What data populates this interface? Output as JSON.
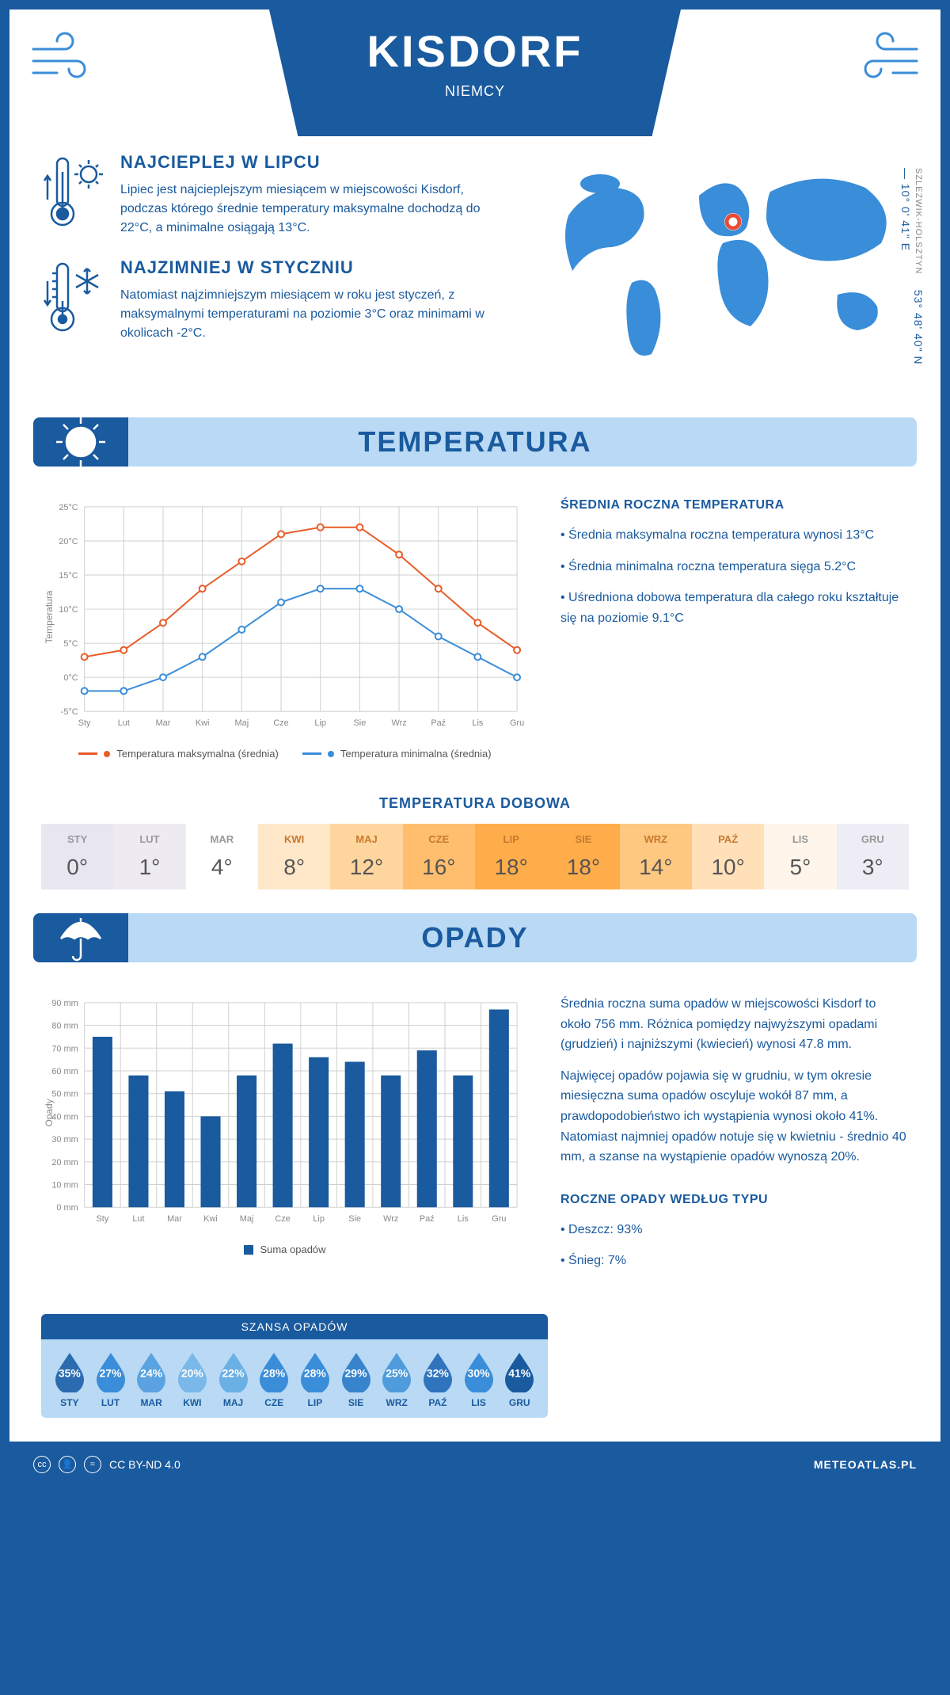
{
  "header": {
    "title": "KISDORF",
    "subtitle": "NIEMCY"
  },
  "summary": {
    "hot": {
      "title": "NAJCIEPLEJ W LIPCU",
      "text": "Lipiec jest najcieplejszym miesiącem w miejscowości Kisdorf, podczas którego średnie temperatury maksymalne dochodzą do 22°C, a minimalne osiągają 13°C."
    },
    "cold": {
      "title": "NAJZIMNIEJ W STYCZNIU",
      "text": "Natomiast najzimniejszym miesiącem w roku jest styczeń, z maksymalnymi temperaturami na poziomie 3°C oraz minimami w okolicach -2°C."
    },
    "coords": "53° 48' 40\" N — 10° 0' 41\" E",
    "region": "SZLEZWIK-HOLSZTYN",
    "marker_color": "#e94b35"
  },
  "temp_section": {
    "header": "TEMPERATURA",
    "chart": {
      "type": "line",
      "categories": [
        "Sty",
        "Lut",
        "Mar",
        "Kwi",
        "Maj",
        "Cze",
        "Lip",
        "Sie",
        "Wrz",
        "Paź",
        "Lis",
        "Gru"
      ],
      "series_max": {
        "label": "Temperatura maksymalna (średnia)",
        "color": "#e85c28",
        "values": [
          3,
          4,
          8,
          13,
          17,
          21,
          22,
          22,
          18,
          13,
          8,
          4
        ]
      },
      "series_min": {
        "label": "Temperatura minimalna (średnia)",
        "color": "#3a8dd8",
        "values": [
          -2,
          -2,
          0,
          3,
          7,
          11,
          13,
          13,
          10,
          6,
          3,
          0
        ]
      },
      "ylabel": "Temperatura",
      "ylim": [
        -5,
        25
      ],
      "ytick_step": 5,
      "y_suffix": "°C",
      "grid_color": "#d0d0d0",
      "background": "#ffffff",
      "marker": "circle",
      "marker_size": 4,
      "line_width": 2
    },
    "annual": {
      "title": "ŚREDNIA ROCZNA TEMPERATURA",
      "b1": "• Średnia maksymalna roczna temperatura wynosi 13°C",
      "b2": "• Średnia minimalna roczna temperatura sięga 5.2°C",
      "b3": "• Uśredniona dobowa temperatura dla całego roku kształtuje się na poziomie 9.1°C"
    },
    "daily": {
      "title": "TEMPERATURA DOBOWA",
      "months": [
        "STY",
        "LUT",
        "MAR",
        "KWI",
        "MAJ",
        "CZE",
        "LIP",
        "SIE",
        "WRZ",
        "PAŹ",
        "LIS",
        "GRU"
      ],
      "values": [
        "0°",
        "1°",
        "4°",
        "8°",
        "12°",
        "16°",
        "18°",
        "18°",
        "14°",
        "10°",
        "5°",
        "3°"
      ],
      "bg_colors": [
        "#e8e6f0",
        "#edeaf2",
        "#ffffff",
        "#ffe8c9",
        "#ffd59e",
        "#ffbe6e",
        "#ffad4a",
        "#ffad4a",
        "#ffc880",
        "#ffe0b8",
        "#fff5ea",
        "#eeecf4"
      ],
      "month_colors": [
        "#999",
        "#999",
        "#999",
        "#c77a2e",
        "#c77a2e",
        "#c77a2e",
        "#c77a2e",
        "#c77a2e",
        "#c77a2e",
        "#c77a2e",
        "#999",
        "#999"
      ]
    }
  },
  "precip_section": {
    "header": "OPADY",
    "chart": {
      "type": "bar",
      "categories": [
        "Sty",
        "Lut",
        "Mar",
        "Kwi",
        "Maj",
        "Cze",
        "Lip",
        "Sie",
        "Wrz",
        "Paź",
        "Lis",
        "Gru"
      ],
      "values": [
        75,
        58,
        51,
        40,
        58,
        72,
        66,
        64,
        58,
        69,
        58,
        87
      ],
      "bar_color": "#1a5a9e",
      "ylabel": "Opady",
      "ylim": [
        0,
        90
      ],
      "ytick_step": 10,
      "y_suffix": " mm",
      "legend_label": "Suma opadów",
      "grid_color": "#d0d0d0",
      "bar_width": 0.55
    },
    "text": {
      "p1": "Średnia roczna suma opadów w miejscowości Kisdorf to około 756 mm. Różnica pomiędzy najwyższymi opadami (grudzień) i najniższymi (kwiecień) wynosi 47.8 mm.",
      "p2": "Najwięcej opadów pojawia się w grudniu, w tym okresie miesięczna suma opadów oscyluje wokół 87 mm, a prawdopodobieństwo ich wystąpienia wynosi około 41%. Natomiast najmniej opadów notuje się w kwietniu - średnio 40 mm, a szanse na wystąpienie opadów wynoszą 20%."
    },
    "chance": {
      "title": "SZANSA OPADÓW",
      "months": [
        "STY",
        "LUT",
        "MAR",
        "KWI",
        "MAJ",
        "CZE",
        "LIP",
        "SIE",
        "WRZ",
        "PAŹ",
        "LIS",
        "GRU"
      ],
      "percents": [
        "35%",
        "27%",
        "24%",
        "20%",
        "22%",
        "28%",
        "28%",
        "29%",
        "25%",
        "32%",
        "30%",
        "41%"
      ],
      "drop_colors": [
        "#2b6cb0",
        "#3a8dd8",
        "#5aa3e0",
        "#79b8e8",
        "#6bb0e4",
        "#3a8dd8",
        "#3a8dd8",
        "#3784cc",
        "#4f9bdb",
        "#2f74bc",
        "#3a8dd8",
        "#1a5a9e"
      ]
    },
    "bytype": {
      "title": "ROCZNE OPADY WEDŁUG TYPU",
      "l1": "• Deszcz: 93%",
      "l2": "• Śnieg: 7%"
    }
  },
  "footer": {
    "license": "CC BY-ND 4.0",
    "site": "METEOATLAS.PL"
  },
  "palette": {
    "primary": "#1a5a9e",
    "light": "#b9d9f4",
    "accent": "#3a8dd8"
  }
}
